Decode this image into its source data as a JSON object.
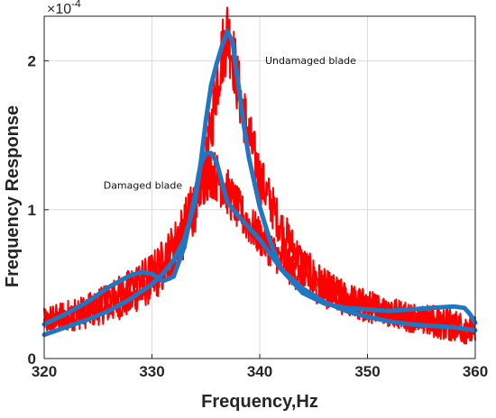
{
  "chart_data": {
    "type": "line",
    "title": "",
    "xlabel": "Frequency,Hz",
    "ylabel": "Frequency Response",
    "xlim": [
      320,
      360
    ],
    "ylim": [
      0,
      2.3
    ],
    "y_scale_label": {
      "base": "×10",
      "exponent": "-4"
    },
    "xticks": [
      320,
      330,
      340,
      350,
      360
    ],
    "xtick_labels": [
      "320",
      "330",
      "340",
      "350",
      "360"
    ],
    "yticks": [
      0,
      1,
      2
    ],
    "ytick_labels": [
      "0",
      "1",
      "2"
    ],
    "grid": true,
    "annotations": [
      {
        "text": "Undamaged blade",
        "x": 340.5,
        "y": 1.98
      },
      {
        "text": "Damaged blade",
        "x": 325.5,
        "y": 1.14
      }
    ],
    "series": [
      {
        "style": "noisy-raw",
        "color": "#ff0000",
        "x": [
          320,
          322,
          324,
          326,
          328,
          329,
          330,
          331,
          332,
          333,
          334,
          335,
          335.5,
          336,
          336.5,
          337,
          337.5,
          338,
          339,
          340,
          342,
          344,
          346,
          348,
          350,
          352,
          354,
          356,
          358,
          360
        ],
        "values": [
          0.24,
          0.26,
          0.29,
          0.33,
          0.38,
          0.43,
          0.48,
          0.55,
          0.66,
          0.8,
          1.0,
          1.3,
          1.55,
          1.85,
          2.05,
          2.2,
          2.05,
          1.82,
          1.5,
          1.22,
          0.88,
          0.64,
          0.5,
          0.42,
          0.37,
          0.33,
          0.3,
          0.28,
          0.25,
          0.2
        ]
      },
      {
        "style": "noisy-raw",
        "color": "#ff0000",
        "x": [
          320,
          322,
          324,
          326,
          328,
          330,
          331,
          332,
          333,
          334,
          335,
          335.5,
          336,
          337,
          338,
          339,
          340,
          342,
          344,
          346,
          348,
          350,
          352,
          354,
          356,
          358,
          360
        ],
        "values": [
          0.26,
          0.3,
          0.35,
          0.42,
          0.5,
          0.6,
          0.68,
          0.78,
          0.92,
          1.08,
          1.22,
          1.25,
          1.22,
          1.12,
          1.0,
          0.9,
          0.82,
          0.66,
          0.53,
          0.44,
          0.38,
          0.33,
          0.3,
          0.26,
          0.22,
          0.19,
          0.16
        ]
      },
      {
        "style": "smoothed",
        "color": "#2176c1",
        "x": [
          320,
          322,
          324,
          326,
          328,
          330,
          331,
          332,
          333,
          334,
          334.5,
          335,
          335.5,
          336,
          336.5,
          337,
          337.5,
          338,
          338.5,
          339,
          340,
          341,
          342,
          344,
          346,
          348,
          350,
          352,
          354,
          356,
          358,
          359,
          359.5,
          360
        ],
        "values": [
          0.16,
          0.21,
          0.26,
          0.32,
          0.4,
          0.5,
          0.57,
          0.66,
          0.8,
          1.05,
          1.3,
          1.6,
          1.84,
          1.98,
          2.1,
          2.2,
          2.12,
          1.85,
          1.58,
          1.35,
          1.02,
          0.78,
          0.6,
          0.44,
          0.37,
          0.34,
          0.33,
          0.32,
          0.33,
          0.34,
          0.35,
          0.34,
          0.3,
          0.24
        ]
      },
      {
        "style": "smoothed",
        "color": "#2176c1",
        "x": [
          320,
          322,
          324,
          326,
          328,
          329,
          330,
          331,
          332,
          333,
          334,
          334.5,
          335,
          335.5,
          336,
          336.5,
          337,
          338,
          339,
          340,
          341,
          342,
          344,
          346,
          348,
          350,
          352,
          354,
          356,
          358,
          359,
          360
        ],
        "values": [
          0.23,
          0.3,
          0.38,
          0.48,
          0.56,
          0.58,
          0.57,
          0.52,
          0.55,
          0.75,
          1.1,
          1.3,
          1.38,
          1.38,
          1.32,
          1.18,
          1.05,
          0.96,
          0.88,
          0.8,
          0.7,
          0.6,
          0.47,
          0.38,
          0.32,
          0.28,
          0.25,
          0.23,
          0.22,
          0.21,
          0.2,
          0.19
        ]
      }
    ]
  }
}
